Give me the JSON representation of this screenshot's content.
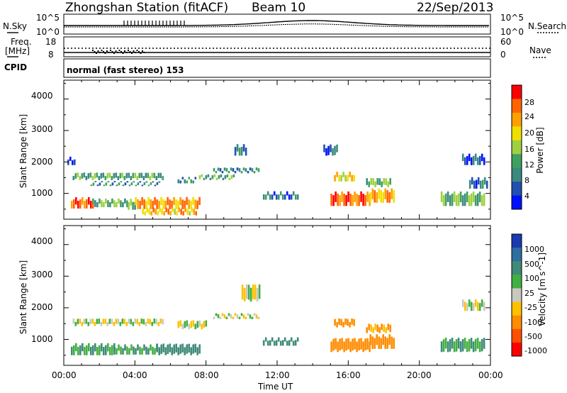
{
  "header": {
    "station": "Zhongshan Station (fitACF)",
    "beam": "Beam 10",
    "date": "22/Sep/2013"
  },
  "top_panels": {
    "nsky_label": "N.Sky",
    "nsky_ticks": [
      "10^5",
      "10^0"
    ],
    "nsearch_label": "N.Search",
    "nsearch_ticks": [
      "10^5",
      "10^0"
    ],
    "freq_label_1": "Freq.",
    "freq_label_2": "[MHz]",
    "freq_ticks": [
      "18",
      "8"
    ],
    "nave_label": "Nave",
    "nave_ticks": [
      "60",
      "0"
    ],
    "cpid_label": "CPID",
    "cpid_text": "normal (fast stereo) 153"
  },
  "chart_data": [
    {
      "type": "heatmap",
      "title": "",
      "xlabel": "Time UT",
      "ylabel": "Slant Range [km]",
      "x_ticks": [
        "00:00",
        "04:00",
        "08:00",
        "12:00",
        "16:00",
        "20:00",
        "00:00"
      ],
      "y_ticks": [
        "4000",
        "3000",
        "2000",
        "1000"
      ],
      "xlim_hours": [
        0,
        24
      ],
      "ylim_km": [
        180,
        4600
      ],
      "colorbar": {
        "label": "Power [dB]",
        "ticks": [
          "28",
          "24",
          "20",
          "16",
          "12",
          "8",
          "4"
        ],
        "colors": [
          "#ff0000",
          "#ff6400",
          "#ffa000",
          "#f0e000",
          "#a0d040",
          "#40a060",
          "#3a8a80",
          "#2050b0",
          "#0010ff"
        ]
      },
      "echo_regions": [
        {
          "t": [
            0.4,
            1.6
          ],
          "r": [
            520,
            820
          ],
          "level": 26
        },
        {
          "t": [
            1.6,
            3.6
          ],
          "r": [
            560,
            780
          ],
          "level": 14
        },
        {
          "t": [
            3.6,
            4.0
          ],
          "r": [
            480,
            760
          ],
          "level": 12
        },
        {
          "t": [
            4.0,
            7.6
          ],
          "r": [
            500,
            820
          ],
          "level": 24
        },
        {
          "t": [
            4.4,
            7.4
          ],
          "r": [
            300,
            500
          ],
          "level": 22
        },
        {
          "t": [
            0.5,
            5.6
          ],
          "r": [
            1420,
            1620
          ],
          "level": 12
        },
        {
          "t": [
            1.5,
            5.4
          ],
          "r": [
            1240,
            1340
          ],
          "level": 10
        },
        {
          "t": [
            6.4,
            7.4
          ],
          "r": [
            1320,
            1460
          ],
          "level": 10
        },
        {
          "t": [
            7.6,
            9.6
          ],
          "r": [
            1420,
            1560
          ],
          "level": 12
        },
        {
          "t": [
            8.4,
            11.0
          ],
          "r": [
            1640,
            1780
          ],
          "level": 10
        },
        {
          "t": [
            9.6,
            10.2
          ],
          "r": [
            2200,
            2500
          ],
          "level": 8
        },
        {
          "t": [
            11.2,
            13.2
          ],
          "r": [
            800,
            1000
          ],
          "level": 8
        },
        {
          "t": [
            15.2,
            16.3
          ],
          "r": [
            1380,
            1620
          ],
          "level": 20
        },
        {
          "t": [
            15.0,
            17.2
          ],
          "r": [
            600,
            1000
          ],
          "level": 26
        },
        {
          "t": [
            17.2,
            18.6
          ],
          "r": [
            700,
            1100
          ],
          "level": 22
        },
        {
          "t": [
            17.0,
            18.4
          ],
          "r": [
            1200,
            1450
          ],
          "level": 14
        },
        {
          "t": [
            21.2,
            23.6
          ],
          "r": [
            600,
            1000
          ],
          "level": 14
        },
        {
          "t": [
            22.8,
            23.8
          ],
          "r": [
            1150,
            1450
          ],
          "level": 8
        },
        {
          "t": [
            0.2,
            0.6
          ],
          "r": [
            1900,
            2100
          ],
          "level": 6
        },
        {
          "t": [
            14.6,
            15.4
          ],
          "r": [
            2200,
            2500
          ],
          "level": 6
        },
        {
          "t": [
            22.4,
            23.6
          ],
          "r": [
            1900,
            2200
          ],
          "level": 6
        }
      ]
    },
    {
      "type": "heatmap",
      "title": "",
      "xlabel": "Time UT",
      "ylabel": "Slant Range [km]",
      "x_ticks": [
        "00:00",
        "04:00",
        "08:00",
        "12:00",
        "16:00",
        "20:00",
        "00:00"
      ],
      "y_ticks": [
        "4000",
        "3000",
        "2000",
        "1000"
      ],
      "xlim_hours": [
        0,
        24
      ],
      "ylim_km": [
        180,
        4600
      ],
      "colorbar": {
        "label": "Velocity [m s^-1]",
        "ticks": [
          "1000",
          "500",
          "100",
          "25",
          "-25",
          "-100",
          "-500",
          "-1000"
        ],
        "colors": [
          "#1a3ab0",
          "#2f6ea0",
          "#3f8a78",
          "#40b040",
          "#c8c8c0",
          "#ffc000",
          "#ff8c00",
          "#ff5000",
          "#ff0000"
        ]
      },
      "echo_regions": [
        {
          "t": [
            0.4,
            2.8
          ],
          "r": [
            500,
            820
          ],
          "level": 100
        },
        {
          "t": [
            2.8,
            5.2
          ],
          "r": [
            520,
            780
          ],
          "level": 100
        },
        {
          "t": [
            5.2,
            7.6
          ],
          "r": [
            500,
            820
          ],
          "level": 300
        },
        {
          "t": [
            0.5,
            5.6
          ],
          "r": [
            1420,
            1620
          ],
          "level": 0
        },
        {
          "t": [
            6.4,
            8.0
          ],
          "r": [
            1320,
            1560
          ],
          "level": 0
        },
        {
          "t": [
            8.4,
            11.0
          ],
          "r": [
            1640,
            1780
          ],
          "level": 0
        },
        {
          "t": [
            10.0,
            11.0
          ],
          "r": [
            2200,
            2700
          ],
          "level": 0
        },
        {
          "t": [
            11.2,
            13.2
          ],
          "r": [
            800,
            1000
          ],
          "level": 300
        },
        {
          "t": [
            15.0,
            17.2
          ],
          "r": [
            600,
            1000
          ],
          "level": -300
        },
        {
          "t": [
            15.2,
            16.3
          ],
          "r": [
            1380,
            1620
          ],
          "level": -300
        },
        {
          "t": [
            17.2,
            18.6
          ],
          "r": [
            700,
            1100
          ],
          "level": -300
        },
        {
          "t": [
            17.0,
            18.4
          ],
          "r": [
            1200,
            1450
          ],
          "level": -100
        },
        {
          "t": [
            21.2,
            23.6
          ],
          "r": [
            600,
            1000
          ],
          "level": 100
        },
        {
          "t": [
            22.4,
            23.6
          ],
          "r": [
            1900,
            2200
          ],
          "level": 0
        }
      ]
    }
  ]
}
